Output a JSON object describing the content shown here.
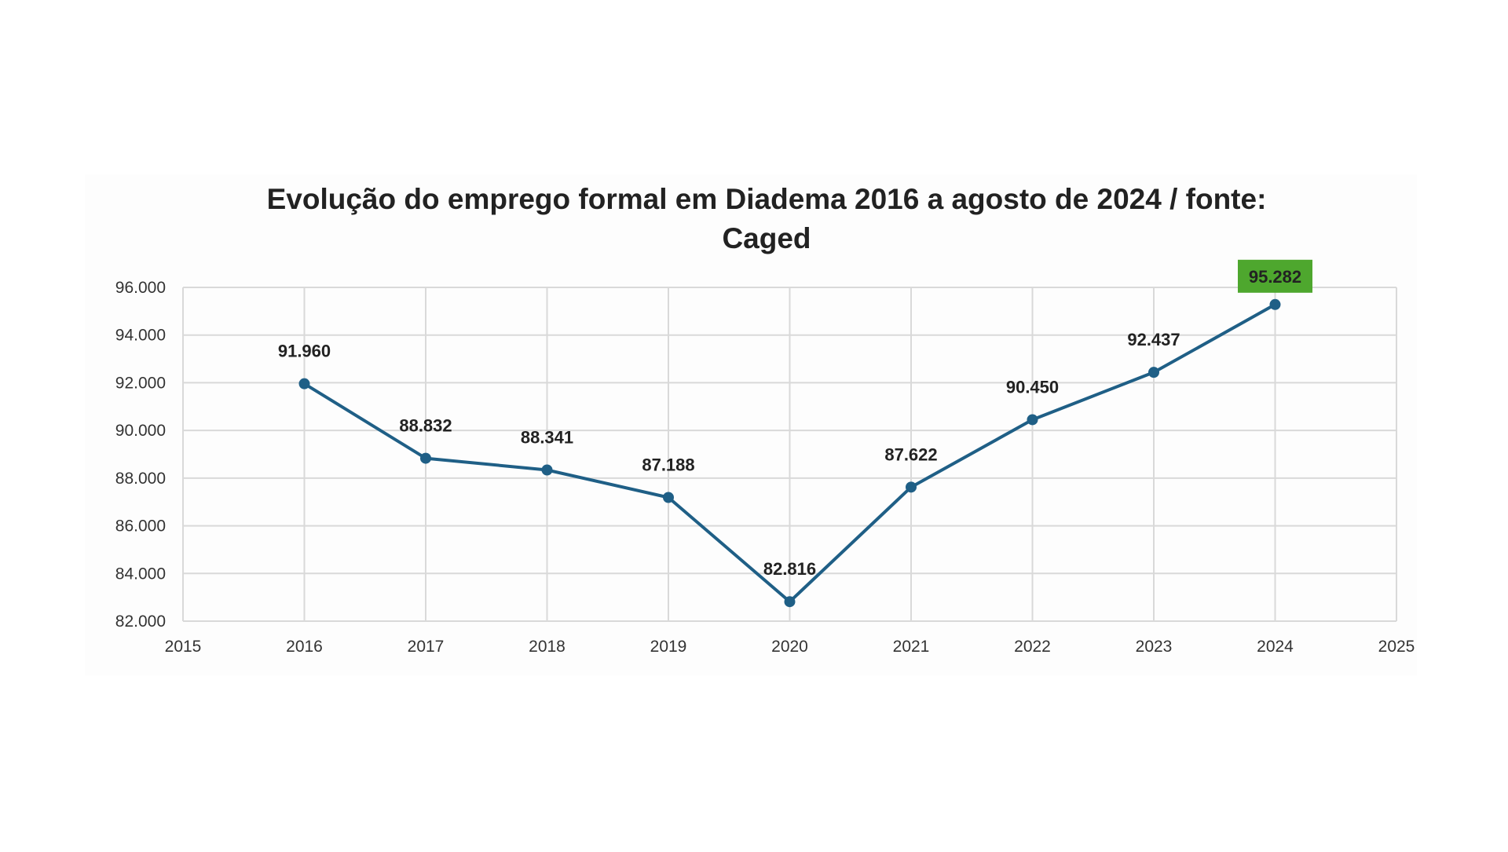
{
  "chart_data": {
    "type": "line",
    "title_line1": "Evolução do emprego formal em Diadema 2016 a agosto de 2024 / fonte:",
    "title_line2": "Caged",
    "xlabel": "",
    "ylabel": "",
    "x": [
      2016,
      2017,
      2018,
      2019,
      2020,
      2021,
      2022,
      2023,
      2024
    ],
    "series": [
      {
        "values": [
          91960,
          88832,
          88341,
          87188,
          82816,
          87622,
          90450,
          92437,
          95282
        ],
        "data_labels": [
          "91.960",
          "88.832",
          "88.341",
          "87.188",
          "82.816",
          "87.622",
          "90.450",
          "92.437",
          "95.282"
        ]
      }
    ],
    "xlim": [
      2015,
      2025
    ],
    "ylim": [
      82000,
      96000
    ],
    "x_ticks": [
      "2015",
      "2016",
      "2017",
      "2018",
      "2019",
      "2020",
      "2021",
      "2022",
      "2023",
      "2024",
      "2025"
    ],
    "y_ticks": [
      "82.000",
      "84.000",
      "86.000",
      "88.000",
      "90.000",
      "92.000",
      "94.000",
      "96.000"
    ],
    "grid": true,
    "legend": "none",
    "colors": {
      "line": "#1f5f86",
      "marker": "#1f5f86",
      "grid": "#d9d9d9",
      "highlight_label_bg": "#4ea72e"
    },
    "highlighted_point": 2024
  }
}
